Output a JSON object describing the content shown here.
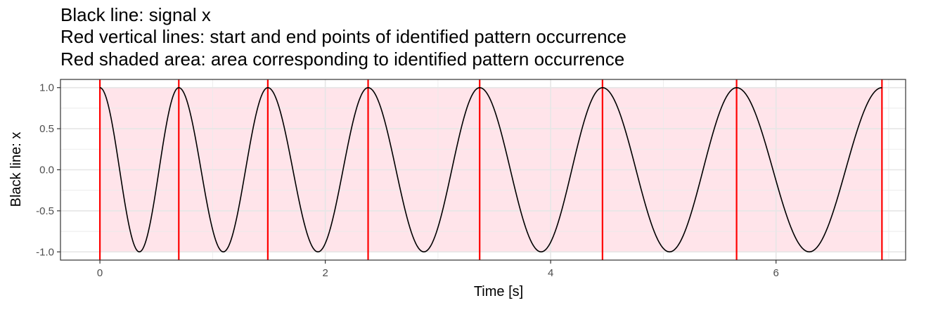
{
  "chart_data": {
    "type": "line",
    "title_lines": [
      "Black line: signal x",
      "Red vertical lines: start and end points of identified pattern occurrence",
      "Red shaded area: area corresponding to identified pattern occurrence"
    ],
    "xlabel": "Time [s]",
    "ylabel": "Black line: x",
    "xlim": [
      -0.35,
      7.15
    ],
    "ylim": [
      -1.1,
      1.1
    ],
    "x_ticks": [
      0,
      2,
      4,
      6
    ],
    "x_tick_labels": [
      "0",
      "2",
      "4",
      "6"
    ],
    "y_ticks": [
      -1.0,
      -0.5,
      0.0,
      0.5,
      1.0
    ],
    "y_tick_labels": [
      "-1.0",
      "-0.5",
      "0.0",
      "0.5",
      "1.0"
    ],
    "grid": true,
    "series": [
      {
        "name": "signal x",
        "color": "#000000",
        "peaks_x": [
          0,
          0.7,
          1.49,
          2.38,
          3.37,
          4.46,
          5.65,
          6.94
        ],
        "y_min": -1.0,
        "y_max": 1.0
      }
    ],
    "vertical_lines": {
      "color": "#ff0000",
      "x": [
        0,
        0.7,
        1.49,
        2.38,
        3.37,
        4.46,
        5.65,
        6.94
      ]
    },
    "shaded_area": {
      "color": "#ffe4ea",
      "x_range": [
        0,
        6.94
      ],
      "y_range": [
        -1.0,
        1.0
      ]
    }
  }
}
